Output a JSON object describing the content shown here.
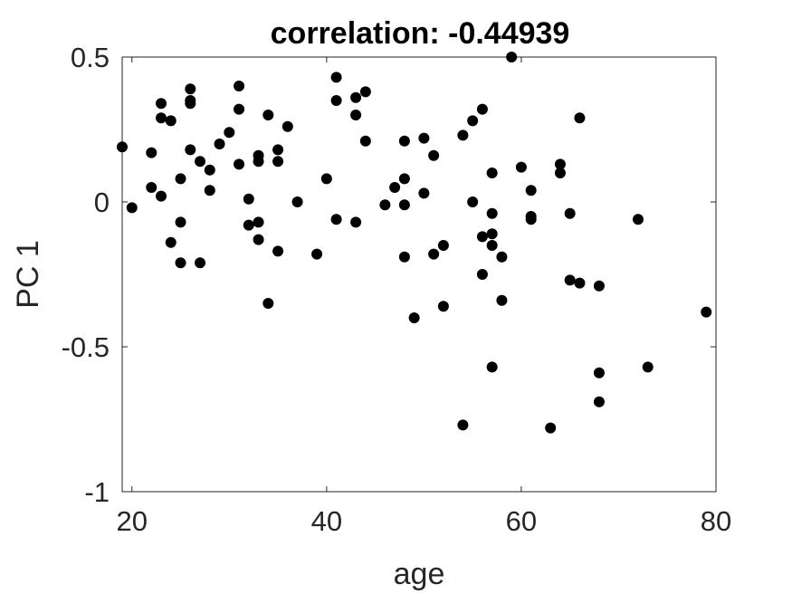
{
  "chart_data": {
    "type": "scatter",
    "title": "correlation: -0.44939",
    "xlabel": "age",
    "ylabel": "PC 1",
    "xlim": [
      19,
      80
    ],
    "ylim": [
      -1,
      0.5
    ],
    "xticks": [
      20,
      40,
      60,
      80
    ],
    "xtick_labels": [
      "20",
      "40",
      "60",
      "80"
    ],
    "yticks": [
      -1,
      -0.5,
      0,
      0.5
    ],
    "ytick_labels": [
      "-1",
      "-0.5",
      "0",
      "0.5"
    ],
    "grid": false,
    "legend": "none",
    "marker_color": "#000000",
    "points": [
      [
        19,
        0.19
      ],
      [
        20,
        -0.02
      ],
      [
        22,
        0.05
      ],
      [
        22,
        0.17
      ],
      [
        23,
        0.34
      ],
      [
        23,
        0.29
      ],
      [
        23,
        0.02
      ],
      [
        24,
        0.28
      ],
      [
        24,
        -0.14
      ],
      [
        25,
        0.08
      ],
      [
        25,
        -0.07
      ],
      [
        25,
        -0.21
      ],
      [
        26,
        0.39
      ],
      [
        26,
        0.35
      ],
      [
        26,
        0.34
      ],
      [
        26,
        0.18
      ],
      [
        27,
        0.14
      ],
      [
        27,
        -0.21
      ],
      [
        28,
        0.11
      ],
      [
        28,
        0.04
      ],
      [
        29,
        0.2
      ],
      [
        30,
        0.24
      ],
      [
        31,
        0.4
      ],
      [
        31,
        0.32
      ],
      [
        31,
        0.13
      ],
      [
        32,
        0.01
      ],
      [
        32,
        -0.08
      ],
      [
        33,
        0.16
      ],
      [
        33,
        0.14
      ],
      [
        33,
        -0.07
      ],
      [
        33,
        -0.13
      ],
      [
        34,
        0.3
      ],
      [
        34,
        -0.35
      ],
      [
        35,
        0.18
      ],
      [
        35,
        0.14
      ],
      [
        35,
        -0.17
      ],
      [
        36,
        0.26
      ],
      [
        37,
        0.0
      ],
      [
        39,
        -0.18
      ],
      [
        40,
        0.08
      ],
      [
        41,
        0.43
      ],
      [
        41,
        0.35
      ],
      [
        41,
        -0.06
      ],
      [
        43,
        0.36
      ],
      [
        43,
        0.3
      ],
      [
        43,
        -0.07
      ],
      [
        44,
        0.38
      ],
      [
        44,
        0.21
      ],
      [
        46,
        -0.01
      ],
      [
        47,
        0.05
      ],
      [
        48,
        0.21
      ],
      [
        48,
        0.08
      ],
      [
        48,
        -0.01
      ],
      [
        48,
        -0.19
      ],
      [
        49,
        -0.4
      ],
      [
        50,
        0.22
      ],
      [
        50,
        0.03
      ],
      [
        51,
        0.16
      ],
      [
        51,
        -0.18
      ],
      [
        52,
        -0.15
      ],
      [
        52,
        -0.36
      ],
      [
        54,
        0.23
      ],
      [
        54,
        -0.77
      ],
      [
        55,
        0.28
      ],
      [
        55,
        0.0
      ],
      [
        56,
        0.32
      ],
      [
        56,
        -0.12
      ],
      [
        56,
        -0.25
      ],
      [
        57,
        0.1
      ],
      [
        57,
        -0.04
      ],
      [
        57,
        -0.11
      ],
      [
        57,
        -0.15
      ],
      [
        57,
        -0.57
      ],
      [
        58,
        -0.19
      ],
      [
        58,
        -0.34
      ],
      [
        59,
        0.5
      ],
      [
        60,
        0.12
      ],
      [
        61,
        0.04
      ],
      [
        61,
        -0.05
      ],
      [
        61,
        -0.06
      ],
      [
        63,
        -0.78
      ],
      [
        64,
        0.13
      ],
      [
        64,
        0.1
      ],
      [
        65,
        -0.04
      ],
      [
        65,
        -0.27
      ],
      [
        66,
        0.29
      ],
      [
        66,
        -0.28
      ],
      [
        68,
        -0.29
      ],
      [
        68,
        -0.59
      ],
      [
        68,
        -0.69
      ],
      [
        72,
        -0.06
      ],
      [
        73,
        -0.57
      ],
      [
        79,
        -0.38
      ]
    ]
  }
}
